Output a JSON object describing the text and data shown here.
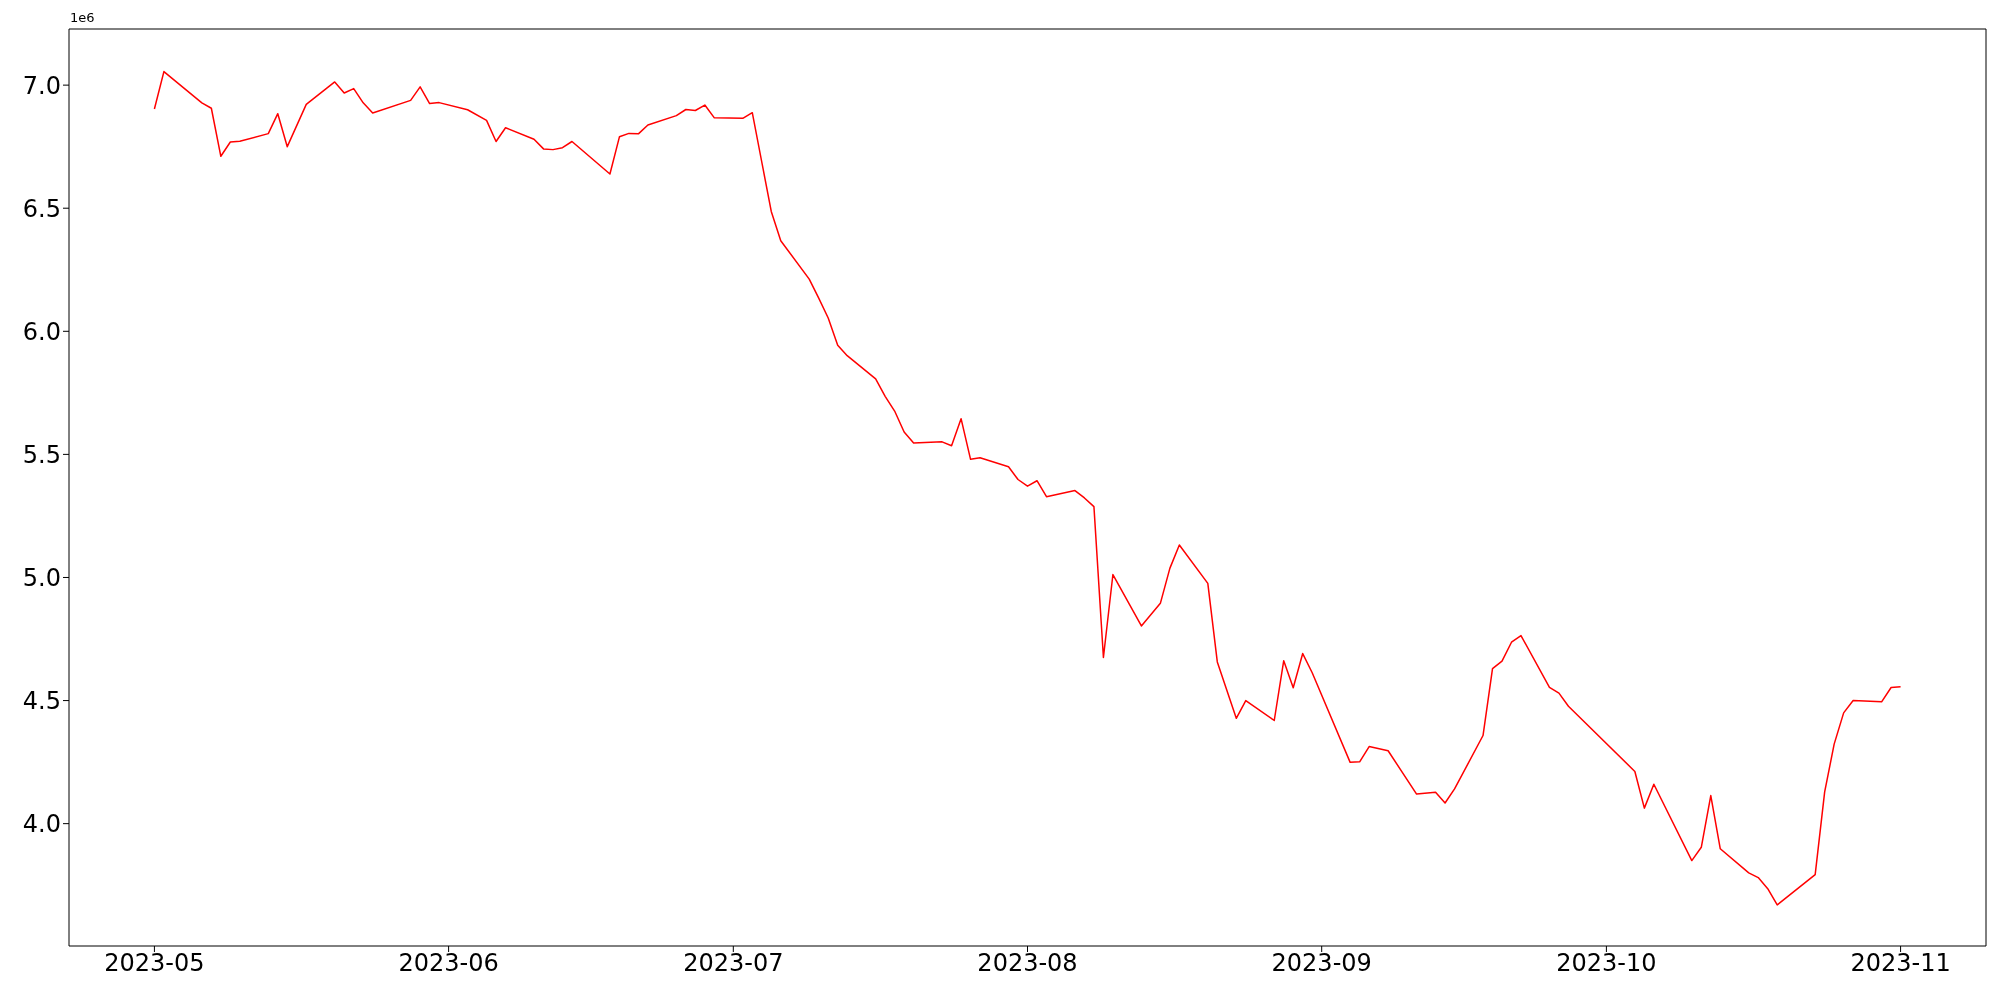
{
  "chart_data": {
    "type": "line",
    "annotations": [
      "1e6"
    ],
    "color": "#ff0000",
    "x": [
      "2023-05-01",
      "2023-05-02",
      "2023-05-06",
      "2023-05-07",
      "2023-05-08",
      "2023-05-09",
      "2023-05-10",
      "2023-05-13",
      "2023-05-14",
      "2023-05-15",
      "2023-05-17",
      "2023-05-20",
      "2023-05-21",
      "2023-05-22",
      "2023-05-23",
      "2023-05-24",
      "2023-05-28",
      "2023-05-29",
      "2023-05-30",
      "2023-05-31",
      "2023-06-03",
      "2023-06-05",
      "2023-06-06",
      "2023-06-07",
      "2023-06-10",
      "2023-06-11",
      "2023-06-12",
      "2023-06-13",
      "2023-06-14",
      "2023-06-18",
      "2023-06-19",
      "2023-06-20",
      "2023-06-21",
      "2023-06-22",
      "2023-06-25",
      "2023-06-26",
      "2023-06-27",
      "2023-06-28",
      "2023-06-29",
      "2023-07-02",
      "2023-07-03",
      "2023-07-05",
      "2023-07-06",
      "2023-07-09",
      "2023-07-10",
      "2023-07-11",
      "2023-07-12",
      "2023-07-13",
      "2023-07-16",
      "2023-07-17",
      "2023-07-18",
      "2023-07-19",
      "2023-07-20",
      "2023-07-23",
      "2023-07-24",
      "2023-07-25",
      "2023-07-26",
      "2023-07-27",
      "2023-07-30",
      "2023-07-31",
      "2023-08-01",
      "2023-08-02",
      "2023-08-03",
      "2023-08-06",
      "2023-08-07",
      "2023-08-08",
      "2023-08-09",
      "2023-08-10",
      "2023-08-13",
      "2023-08-15",
      "2023-08-16",
      "2023-08-17",
      "2023-08-20",
      "2023-08-21",
      "2023-08-23",
      "2023-08-24",
      "2023-08-27",
      "2023-08-28",
      "2023-08-29",
      "2023-08-30",
      "2023-08-31",
      "2023-09-04",
      "2023-09-05",
      "2023-09-06",
      "2023-09-08",
      "2023-09-11",
      "2023-09-13",
      "2023-09-14",
      "2023-09-15",
      "2023-09-18",
      "2023-09-19",
      "2023-09-20",
      "2023-09-21",
      "2023-09-22",
      "2023-09-25",
      "2023-09-26",
      "2023-09-27",
      "2023-10-04",
      "2023-10-05",
      "2023-10-06",
      "2023-10-10",
      "2023-10-11",
      "2023-10-12",
      "2023-10-13",
      "2023-10-16",
      "2023-10-17",
      "2023-10-18",
      "2023-10-19",
      "2023-10-23",
      "2023-10-24",
      "2023-10-25",
      "2023-10-26",
      "2023-10-27",
      "2023-10-30",
      "2023-10-31",
      "2023-11-01"
    ],
    "values": [
      6.903,
      7.055,
      6.928,
      6.906,
      6.711,
      6.769,
      6.772,
      6.803,
      6.884,
      6.75,
      6.922,
      7.013,
      6.968,
      6.986,
      6.928,
      6.887,
      6.938,
      6.993,
      6.925,
      6.929,
      6.9,
      6.857,
      6.771,
      6.827,
      6.78,
      6.741,
      6.738,
      6.746,
      6.771,
      6.639,
      6.79,
      6.804,
      6.802,
      6.838,
      6.876,
      6.901,
      6.897,
      6.919,
      6.867,
      6.865,
      6.888,
      6.487,
      6.368,
      6.212,
      6.135,
      6.054,
      5.943,
      5.901,
      5.807,
      5.736,
      5.676,
      5.591,
      5.546,
      5.551,
      5.535,
      5.645,
      5.48,
      5.486,
      5.45,
      5.398,
      5.371,
      5.393,
      5.328,
      5.353,
      5.323,
      5.288,
      4.675,
      5.012,
      4.803,
      4.895,
      5.037,
      5.132,
      4.976,
      4.657,
      4.428,
      4.5,
      4.419,
      4.662,
      4.552,
      4.691,
      4.613,
      4.249,
      4.251,
      4.313,
      4.296,
      4.12,
      4.128,
      4.084,
      4.141,
      4.358,
      4.63,
      4.66,
      4.737,
      4.764,
      4.554,
      4.53,
      4.477,
      4.212,
      4.063,
      4.16,
      3.85,
      3.904,
      4.114,
      3.898,
      3.8,
      3.781,
      3.736,
      3.67,
      3.793,
      4.129,
      4.323,
      4.45,
      4.5,
      4.495,
      4.553,
      4.556
    ],
    "xlim": [
      "2023-04-22",
      "2023-11-10"
    ],
    "xticks": [
      {
        "value": "2023-05-01",
        "label": "2023-05"
      },
      {
        "value": "2023-06-01",
        "label": "2023-06"
      },
      {
        "value": "2023-07-01",
        "label": "2023-07"
      },
      {
        "value": "2023-08-01",
        "label": "2023-08"
      },
      {
        "value": "2023-09-01",
        "label": "2023-09"
      },
      {
        "value": "2023-10-01",
        "label": "2023-10"
      },
      {
        "value": "2023-11-01",
        "label": "2023-11"
      }
    ],
    "ylim": [
      3.503,
      7.228
    ],
    "yticks": [
      {
        "value": 4,
        "label": "4.0"
      },
      4.5,
      {
        "value": 5,
        "label": "5.0"
      },
      5.5,
      {
        "value": 6,
        "label": "6.0"
      },
      6.5,
      {
        "value": 7,
        "label": "7.0"
      }
    ]
  }
}
